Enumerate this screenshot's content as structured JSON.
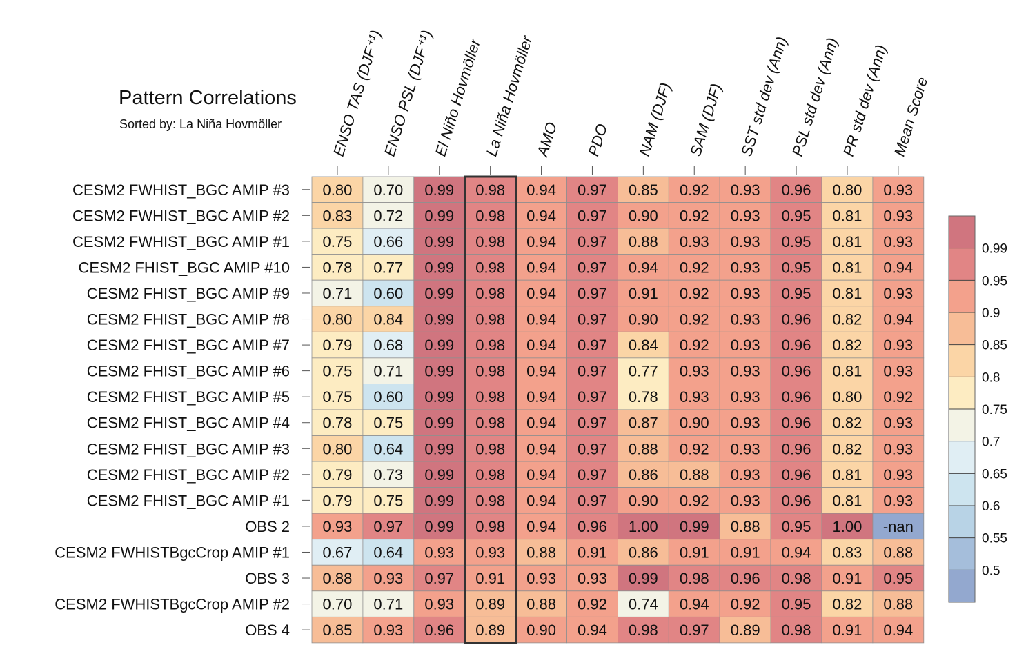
{
  "chart_data": {
    "type": "heatmap",
    "title": "Pattern Correlations",
    "subtitle": "Sorted by: La Niña Hovmöller",
    "columns": [
      "ENSO TAS (DJF⁺¹)",
      "ENSO PSL (DJF⁺¹)",
      "El Niño Hovmöller",
      "La Niña Hovmöller",
      "AMO",
      "PDO",
      "NAM (DJF)",
      "SAM (DJF)",
      "SST std dev (Ann)",
      "PSL std dev (Ann)",
      "PR std dev (Ann)",
      "Mean Score"
    ],
    "highlighted_column": "La Niña Hovmöller",
    "rows": [
      "CESM2 FWHIST_BGC AMIP #3",
      "CESM2 FWHIST_BGC AMIP #2",
      "CESM2 FWHIST_BGC AMIP #1",
      "CESM2 FHIST_BGC AMIP #10",
      "CESM2 FHIST_BGC AMIP #9",
      "CESM2 FHIST_BGC AMIP #8",
      "CESM2 FHIST_BGC AMIP #7",
      "CESM2 FHIST_BGC AMIP #6",
      "CESM2 FHIST_BGC AMIP #5",
      "CESM2 FHIST_BGC AMIP #4",
      "CESM2 FHIST_BGC AMIP #3",
      "CESM2 FHIST_BGC AMIP #2",
      "CESM2 FHIST_BGC AMIP #1",
      "OBS 2",
      "CESM2 FWHISTBgcCrop AMIP #1",
      "OBS 3",
      "CESM2 FWHISTBgcCrop AMIP #2",
      "OBS 4"
    ],
    "values": [
      [
        "0.80",
        "0.70",
        "0.99",
        "0.98",
        "0.94",
        "0.97",
        "0.85",
        "0.92",
        "0.93",
        "0.96",
        "0.80",
        "0.93"
      ],
      [
        "0.83",
        "0.72",
        "0.99",
        "0.98",
        "0.94",
        "0.97",
        "0.90",
        "0.92",
        "0.93",
        "0.95",
        "0.81",
        "0.93"
      ],
      [
        "0.75",
        "0.66",
        "0.99",
        "0.98",
        "0.94",
        "0.97",
        "0.88",
        "0.93",
        "0.93",
        "0.95",
        "0.81",
        "0.93"
      ],
      [
        "0.78",
        "0.77",
        "0.99",
        "0.98",
        "0.94",
        "0.97",
        "0.94",
        "0.92",
        "0.93",
        "0.95",
        "0.81",
        "0.94"
      ],
      [
        "0.71",
        "0.60",
        "0.99",
        "0.98",
        "0.94",
        "0.97",
        "0.91",
        "0.92",
        "0.93",
        "0.95",
        "0.81",
        "0.93"
      ],
      [
        "0.80",
        "0.84",
        "0.99",
        "0.98",
        "0.94",
        "0.97",
        "0.90",
        "0.92",
        "0.93",
        "0.96",
        "0.82",
        "0.94"
      ],
      [
        "0.79",
        "0.68",
        "0.99",
        "0.98",
        "0.94",
        "0.97",
        "0.84",
        "0.92",
        "0.93",
        "0.96",
        "0.82",
        "0.93"
      ],
      [
        "0.75",
        "0.71",
        "0.99",
        "0.98",
        "0.94",
        "0.97",
        "0.77",
        "0.93",
        "0.93",
        "0.96",
        "0.81",
        "0.93"
      ],
      [
        "0.75",
        "0.60",
        "0.99",
        "0.98",
        "0.94",
        "0.97",
        "0.78",
        "0.93",
        "0.93",
        "0.96",
        "0.80",
        "0.92"
      ],
      [
        "0.78",
        "0.75",
        "0.99",
        "0.98",
        "0.94",
        "0.97",
        "0.87",
        "0.90",
        "0.93",
        "0.96",
        "0.82",
        "0.93"
      ],
      [
        "0.80",
        "0.64",
        "0.99",
        "0.98",
        "0.94",
        "0.97",
        "0.88",
        "0.92",
        "0.93",
        "0.96",
        "0.82",
        "0.93"
      ],
      [
        "0.79",
        "0.73",
        "0.99",
        "0.98",
        "0.94",
        "0.97",
        "0.86",
        "0.88",
        "0.93",
        "0.96",
        "0.81",
        "0.93"
      ],
      [
        "0.79",
        "0.75",
        "0.99",
        "0.98",
        "0.94",
        "0.97",
        "0.90",
        "0.92",
        "0.93",
        "0.96",
        "0.81",
        "0.93"
      ],
      [
        "0.93",
        "0.97",
        "0.99",
        "0.98",
        "0.94",
        "0.96",
        "1.00",
        "0.99",
        "0.88",
        "0.95",
        "1.00",
        "-nan"
      ],
      [
        "0.67",
        "0.64",
        "0.93",
        "0.93",
        "0.88",
        "0.91",
        "0.86",
        "0.91",
        "0.91",
        "0.94",
        "0.83",
        "0.88"
      ],
      [
        "0.88",
        "0.93",
        "0.97",
        "0.91",
        "0.93",
        "0.93",
        "0.99",
        "0.98",
        "0.96",
        "0.98",
        "0.91",
        "0.95"
      ],
      [
        "0.70",
        "0.71",
        "0.93",
        "0.89",
        "0.88",
        "0.92",
        "0.74",
        "0.94",
        "0.92",
        "0.95",
        "0.82",
        "0.88"
      ],
      [
        "0.85",
        "0.93",
        "0.96",
        "0.89",
        "0.90",
        "0.94",
        "0.98",
        "0.97",
        "0.89",
        "0.98",
        "0.91",
        "0.94"
      ]
    ],
    "colorbar": {
      "tick_labels": [
        "0.99",
        "0.95",
        "0.9",
        "0.85",
        "0.8",
        "0.75",
        "0.7",
        "0.65",
        "0.6",
        "0.55",
        "0.5"
      ],
      "bins": [
        {
          "min": 0.99,
          "max": 1.0,
          "color": "#d0757f"
        },
        {
          "min": 0.95,
          "max": 0.99,
          "color": "#e18585"
        },
        {
          "min": 0.9,
          "max": 0.95,
          "color": "#f3a18c"
        },
        {
          "min": 0.85,
          "max": 0.9,
          "color": "#f7bd97"
        },
        {
          "min": 0.8,
          "max": 0.85,
          "color": "#fbd5a6"
        },
        {
          "min": 0.75,
          "max": 0.8,
          "color": "#fdecc2"
        },
        {
          "min": 0.7,
          "max": 0.75,
          "color": "#f3f3e6"
        },
        {
          "min": 0.65,
          "max": 0.7,
          "color": "#e0eef4"
        },
        {
          "min": 0.6,
          "max": 0.65,
          "color": "#cde4ef"
        },
        {
          "min": 0.55,
          "max": 0.6,
          "color": "#b8d3e6"
        },
        {
          "min": 0.5,
          "max": 0.55,
          "color": "#a5bedb"
        },
        {
          "min": 0.0,
          "max": 0.5,
          "color": "#93a8cf"
        }
      ],
      "nan_color": "#93a8cf"
    }
  }
}
